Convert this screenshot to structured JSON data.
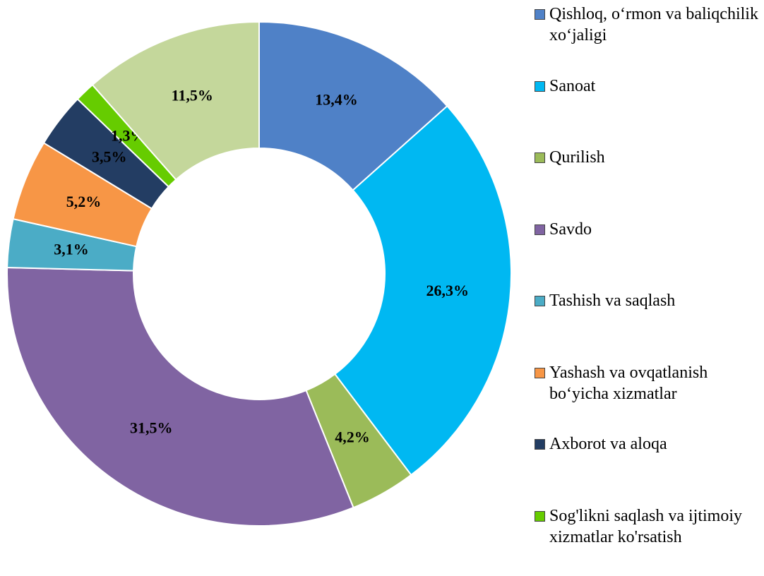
{
  "chart_data": {
    "type": "donut",
    "categories": [
      "Qishloq, o‘rmon va baliqchilik xo‘jaligi",
      "Sanoat",
      "Qurilish",
      "Savdo",
      "Tashish va saqlash",
      "Yashash va ovqatlanish bo‘yicha xizmatlar",
      "Axborot va aloqa",
      "Sog'likni saqlash va ijtimoiy xizmatlar ko'rsatish",
      null
    ],
    "values": [
      13.4,
      26.3,
      4.2,
      31.5,
      3.1,
      5.2,
      3.5,
      1.3,
      11.5
    ],
    "value_labels": [
      "13,4%",
      "26,3%",
      "4,2%",
      "31,5%",
      "3,1%",
      "5,2%",
      "3,5%",
      "1,3%",
      "11,5%"
    ],
    "colors": [
      "#4f81c7",
      "#00b8f2",
      "#9bbb59",
      "#8064a2",
      "#4bacc6",
      "#f79646",
      "#233d63",
      "#66cc00",
      "#c4d79b"
    ],
    "legend": "right"
  }
}
